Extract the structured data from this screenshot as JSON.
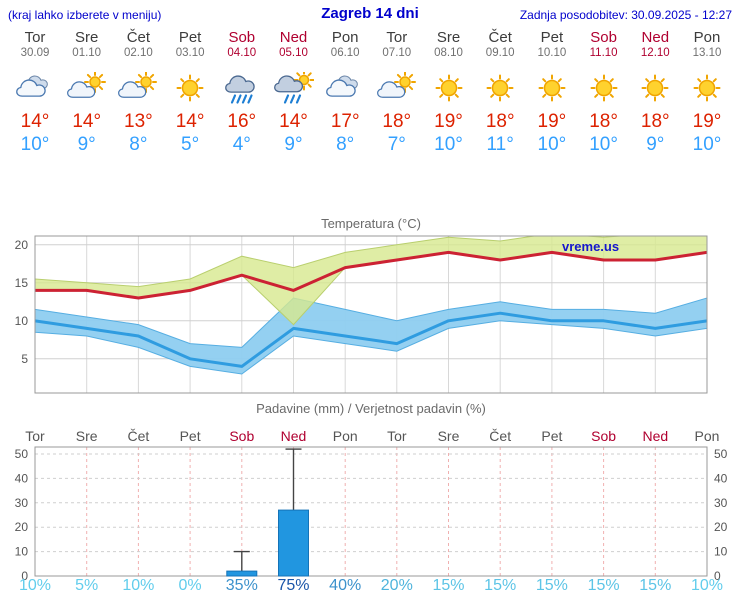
{
  "header": {
    "left": "(kraj lahko izberete v meniju)",
    "title": "Zagreb 14 dni",
    "updated": "Zadnja posodobitev: 30.09.2025 - 12:27"
  },
  "days": [
    {
      "name": "Tor",
      "date": "30.09",
      "weekend": false,
      "icon": "cloudy",
      "tmax": "14°",
      "tmin": "10°"
    },
    {
      "name": "Sre",
      "date": "01.10",
      "weekend": false,
      "icon": "sun-cloud",
      "tmax": "14°",
      "tmin": "9°"
    },
    {
      "name": "Čet",
      "date": "02.10",
      "weekend": false,
      "icon": "sun-cloud",
      "tmax": "13°",
      "tmin": "8°"
    },
    {
      "name": "Pet",
      "date": "03.10",
      "weekend": false,
      "icon": "sunny",
      "tmax": "14°",
      "tmin": "5°"
    },
    {
      "name": "Sob",
      "date": "04.10",
      "weekend": true,
      "icon": "rain",
      "tmax": "16°",
      "tmin": "4°"
    },
    {
      "name": "Ned",
      "date": "05.10",
      "weekend": true,
      "icon": "rain-sun",
      "tmax": "14°",
      "tmin": "9°"
    },
    {
      "name": "Pon",
      "date": "06.10",
      "weekend": false,
      "icon": "cloudy",
      "tmax": "17°",
      "tmin": "8°"
    },
    {
      "name": "Tor",
      "date": "07.10",
      "weekend": false,
      "icon": "sun-cloud",
      "tmax": "18°",
      "tmin": "7°"
    },
    {
      "name": "Sre",
      "date": "08.10",
      "weekend": false,
      "icon": "sunny",
      "tmax": "19°",
      "tmin": "10°"
    },
    {
      "name": "Čet",
      "date": "09.10",
      "weekend": false,
      "icon": "sunny",
      "tmax": "18°",
      "tmin": "11°"
    },
    {
      "name": "Pet",
      "date": "10.10",
      "weekend": false,
      "icon": "sunny",
      "tmax": "19°",
      "tmin": "10°"
    },
    {
      "name": "Sob",
      "date": "11.10",
      "weekend": true,
      "icon": "sunny",
      "tmax": "18°",
      "tmin": "10°"
    },
    {
      "name": "Ned",
      "date": "12.10",
      "weekend": true,
      "icon": "sunny",
      "tmax": "18°",
      "tmin": "9°"
    },
    {
      "name": "Pon",
      "date": "13.10",
      "weekend": false,
      "icon": "sunny",
      "tmax": "19°",
      "tmin": "10°"
    }
  ],
  "chart_data": [
    {
      "type": "line",
      "title": "Temperatura (°C)",
      "watermark": "vreme.us",
      "x_labels": [
        "Tor 30.09",
        "Sre 01.10",
        "Čet 02.10",
        "Pet 03.10",
        "Sob 04.10",
        "Ned 05.10",
        "Pon 06.10",
        "Tor 07.10",
        "Sre 08.10",
        "Čet 09.10",
        "Pet 10.10",
        "Sob 11.10",
        "Ned 12.10",
        "Pon 13.10"
      ],
      "ylim": [
        0.5,
        21.2
      ],
      "yticks": [
        5,
        10,
        15,
        20
      ],
      "grid": true,
      "series": [
        {
          "name": "max-temperature",
          "color": "#cc2233",
          "values": [
            14,
            14,
            13,
            14,
            16,
            14,
            17,
            18,
            19,
            18,
            19,
            18,
            18,
            19
          ]
        },
        {
          "name": "min-temperature",
          "color": "#2f9ce0",
          "values": [
            10,
            9,
            8,
            5,
            4,
            9,
            8,
            7,
            10,
            11,
            10,
            10,
            9,
            10
          ]
        }
      ],
      "bands": [
        {
          "name": "min-spread",
          "color": "#8ecdf0",
          "upper": [
            11.5,
            10.5,
            9.5,
            7,
            6.5,
            13,
            11.5,
            10,
            11.5,
            12.5,
            11.5,
            11.5,
            11,
            13
          ],
          "lower": [
            8.5,
            8,
            6.5,
            4,
            3,
            8,
            7,
            6,
            9,
            10,
            9.5,
            9,
            8,
            9
          ]
        },
        {
          "name": "max-spread",
          "color": "#d7e88e",
          "upper": [
            15.5,
            15,
            14.5,
            15.5,
            18.5,
            17,
            19,
            20,
            21,
            20.5,
            21.5,
            21,
            21.5,
            22.5
          ],
          "lower": [
            14,
            14,
            13,
            14,
            16,
            9.5,
            17,
            18,
            19,
            18,
            19,
            18,
            18,
            19
          ]
        }
      ]
    },
    {
      "type": "bar",
      "title": "Padavine (mm) / Verjetnost padavin (%)",
      "x_labels": [
        "Tor",
        "Sre",
        "Čet",
        "Pet",
        "Sob",
        "Ned",
        "Pon",
        "Tor",
        "Sre",
        "Čet",
        "Pet",
        "Sob",
        "Ned",
        "Pon"
      ],
      "weekend": [
        false,
        false,
        false,
        false,
        true,
        true,
        false,
        false,
        false,
        false,
        false,
        true,
        true,
        false
      ],
      "ylim": [
        0,
        53
      ],
      "yticks": [
        0,
        10,
        20,
        30,
        40,
        50
      ],
      "precipitation_mm": [
        0,
        0,
        0,
        0,
        2,
        27,
        0,
        0,
        0,
        0,
        0,
        0,
        0,
        0
      ],
      "whisker_max_mm": [
        0,
        0,
        0,
        0,
        10,
        52,
        0,
        0,
        0,
        0,
        0,
        0,
        0,
        0
      ],
      "probability": [
        "10%",
        "5%",
        "10%",
        "0%",
        "35%",
        "75%",
        "40%",
        "20%",
        "15%",
        "15%",
        "15%",
        "15%",
        "15%",
        "10%"
      ],
      "probability_colors": [
        "#62cdec",
        "#62cdec",
        "#62cdec",
        "#62cdec",
        "#3c92cc",
        "#1a55a8",
        "#3c92cc",
        "#4fb4dc",
        "#5cc4e6",
        "#5cc4e6",
        "#5cc4e6",
        "#5cc4e6",
        "#5cc4e6",
        "#62cdec"
      ]
    }
  ],
  "colors": {
    "header_blue": "#0000cc",
    "weekend_red": "#b00030",
    "weekday_gray": "#3c3c3c",
    "date_gray": "#707070",
    "temp_high": "#dd2200",
    "temp_low": "#33a0ff",
    "bar_fill": "#2196e0",
    "bar_stroke": "#1473b8",
    "watermark_blue": "#1515cc"
  }
}
